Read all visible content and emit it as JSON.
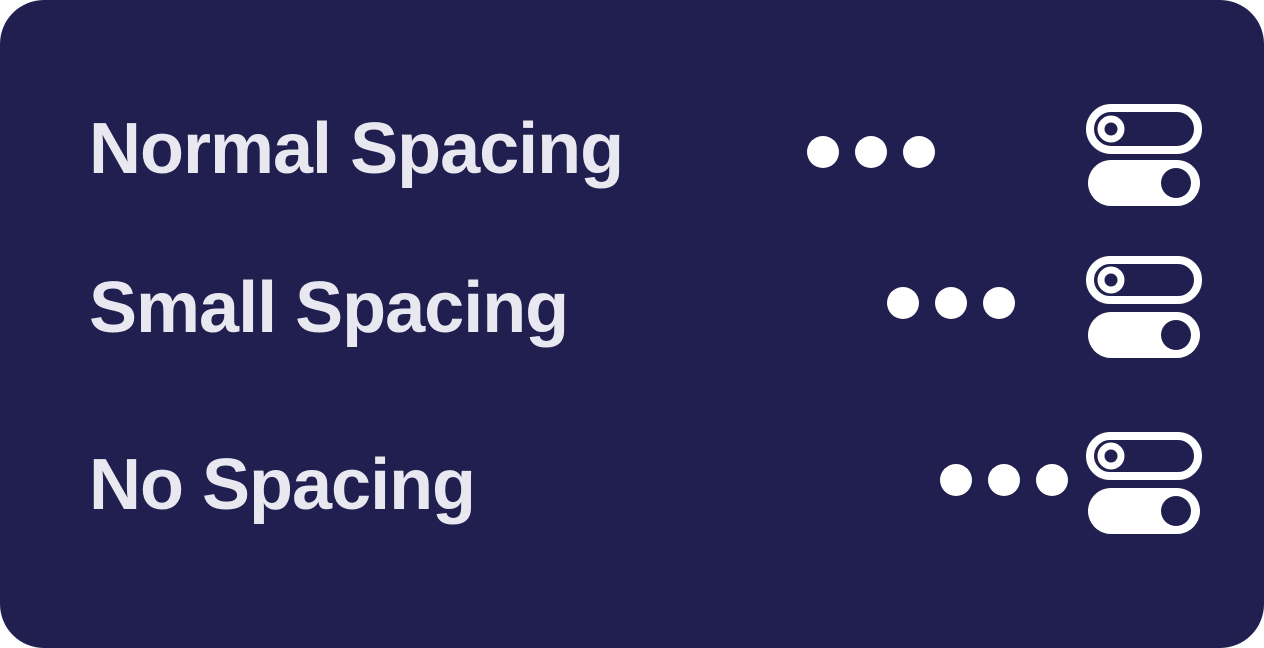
{
  "rows": [
    {
      "label": "Normal Spacing",
      "menu_icon": "more-horizontal-icon",
      "toggle_icon": "toggles-icon"
    },
    {
      "label": "Small Spacing",
      "menu_icon": "more-horizontal-icon",
      "toggle_icon": "toggles-icon"
    },
    {
      "label": "No Spacing",
      "menu_icon": "more-horizontal-icon",
      "toggle_icon": "toggles-icon"
    }
  ],
  "colors": {
    "background": "#211f4f",
    "text": "#e9e8f0",
    "icon": "#ffffff"
  }
}
